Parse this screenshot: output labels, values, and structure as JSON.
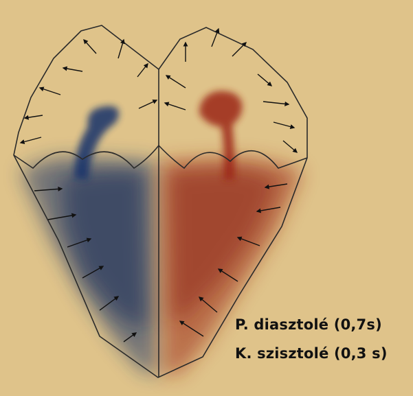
{
  "captions": {
    "line1": "P. diasztolé (0,7s)",
    "line2": "K. szisztolé (0,3 s)"
  },
  "colors": {
    "background": "#dfc38a",
    "left_blood": "#1c3468",
    "right_blood": "#9c2a18",
    "outline": "#2a2a2a",
    "arrow": "#111111"
  },
  "arrows": {
    "atria": "outward",
    "ventricles": "inward"
  }
}
